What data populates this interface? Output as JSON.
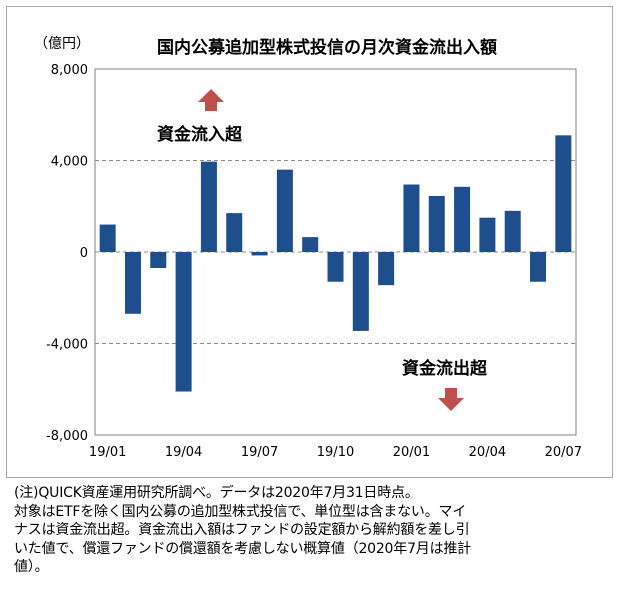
{
  "chart_data": {
    "type": "bar",
    "title": "国内公募追加型株式投信の月次資金流出入額",
    "unit_label": "（億円）",
    "ylim": [
      -8000,
      8000
    ],
    "yticks": [
      "8,000",
      "4,000",
      "0",
      "-4,000",
      "-8,000"
    ],
    "ytick_values": [
      8000,
      4000,
      0,
      -4000,
      -8000
    ],
    "grid": "dashed horizontal",
    "bar_color": "#1f4e8c",
    "categories": [
      "19/01",
      "19/02",
      "19/03",
      "19/04",
      "19/05",
      "19/06",
      "19/07",
      "19/08",
      "19/09",
      "19/10",
      "19/11",
      "19/12",
      "20/01",
      "20/02",
      "20/03",
      "20/04",
      "20/05",
      "20/06",
      "20/07"
    ],
    "xtick_labels": [
      "19/01",
      "19/04",
      "19/07",
      "19/10",
      "20/01",
      "20/04",
      "20/07"
    ],
    "values": [
      1200,
      -2700,
      -700,
      -6100,
      3950,
      1700,
      -150,
      3600,
      650,
      -1300,
      -3450,
      -1450,
      2950,
      2450,
      2850,
      1500,
      1800,
      -1300,
      5100
    ],
    "annotations": [
      {
        "text": "資金流入超",
        "arrow": "up",
        "color": "#c0504d"
      },
      {
        "text": "資金流出超",
        "arrow": "down",
        "color": "#c0504d"
      }
    ]
  },
  "note_lines": [
    "(注)QUICK資産運用研究所調べ。データは2020年7月31日時点。",
    "対象はETFを除く国内公募の追加型株式投信で、単位型は含まない。マイ",
    "ナスは資金流出超。資金流出入額はファンドの設定額から解約額を差し引",
    "いた値で、償還ファンドの償還額を考慮しない概算値（2020年7月は推計",
    "値）。"
  ]
}
